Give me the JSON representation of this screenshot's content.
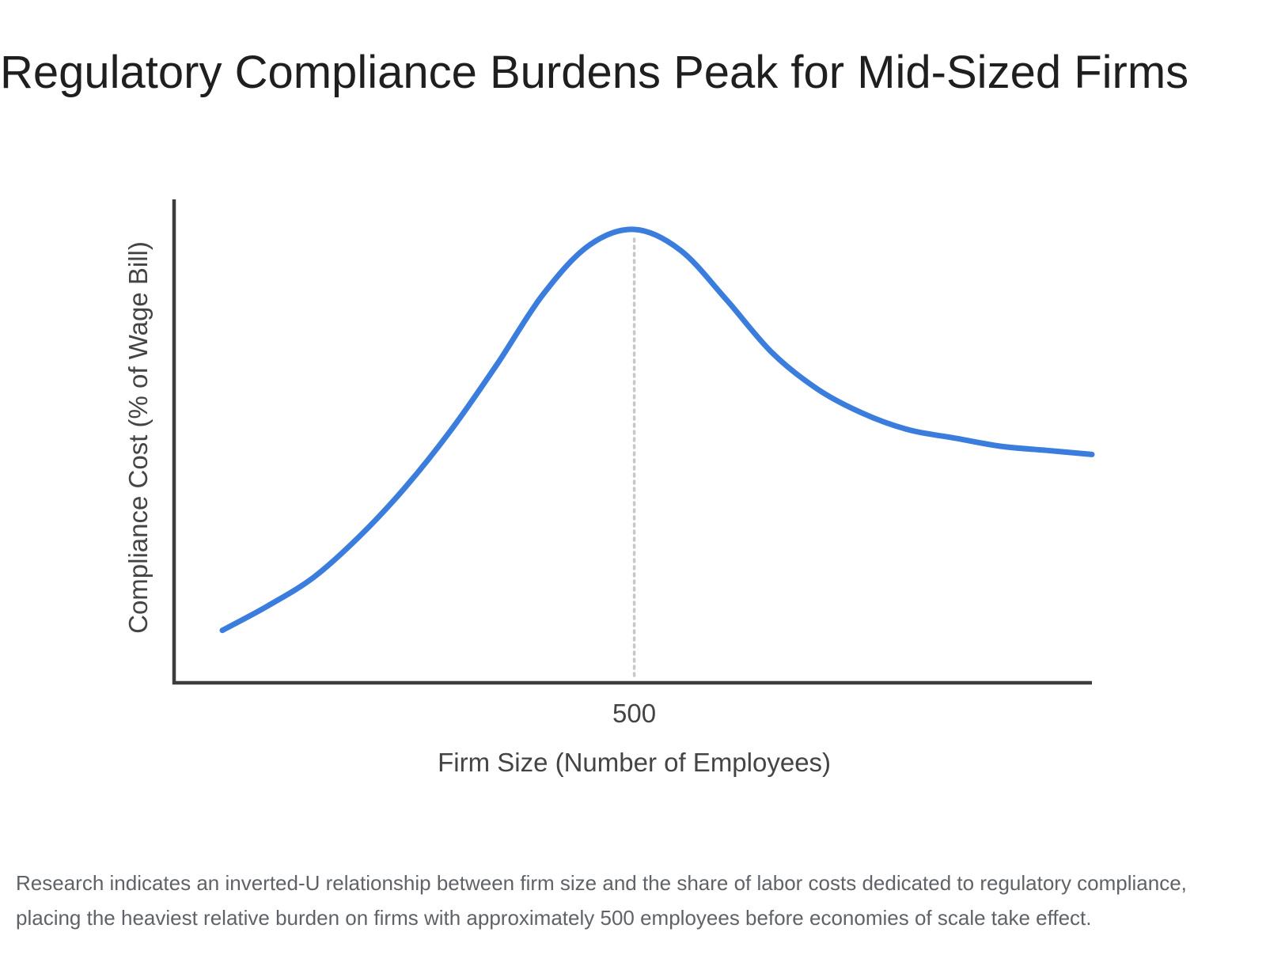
{
  "title": "Regulatory Compliance Burdens Peak for Mid-Sized Firms",
  "caption": "Research indicates an inverted-U relationship between firm size and the share of labor costs dedicated to regulatory compliance, placing the heaviest relative burden on firms with approximately 500 employees before economies of scale take effect.",
  "colors": {
    "curve": "#3b7ddd",
    "axis": "#3c3c3c",
    "peak_guide": "#c8c8c8",
    "label": "#444444",
    "title": "#1f1f1f",
    "caption": "#5f6368"
  },
  "chart_data": {
    "type": "line",
    "xlabel": "Firm Size (Number of Employees)",
    "ylabel": "Compliance Cost (% of Wage Bill)",
    "x_ticks": [
      500
    ],
    "peak_x": 500,
    "y_tick_labels": false,
    "grid": false,
    "legend": "none",
    "x_scale": "undetermined (only one tick labelled)",
    "y_scale": "undetermined (no tick labels)",
    "series": [
      {
        "note": "shape only; relative units, peak = 1.0",
        "x": [
          50,
          100,
          150,
          200,
          250,
          300,
          350,
          400,
          450,
          500,
          550,
          600,
          650,
          700,
          750,
          800,
          850,
          900,
          950,
          1000
        ],
        "y": [
          0.02,
          0.08,
          0.15,
          0.25,
          0.37,
          0.51,
          0.67,
          0.84,
          0.96,
          1.0,
          0.95,
          0.83,
          0.7,
          0.61,
          0.55,
          0.51,
          0.49,
          0.47,
          0.46,
          0.45
        ]
      }
    ]
  }
}
